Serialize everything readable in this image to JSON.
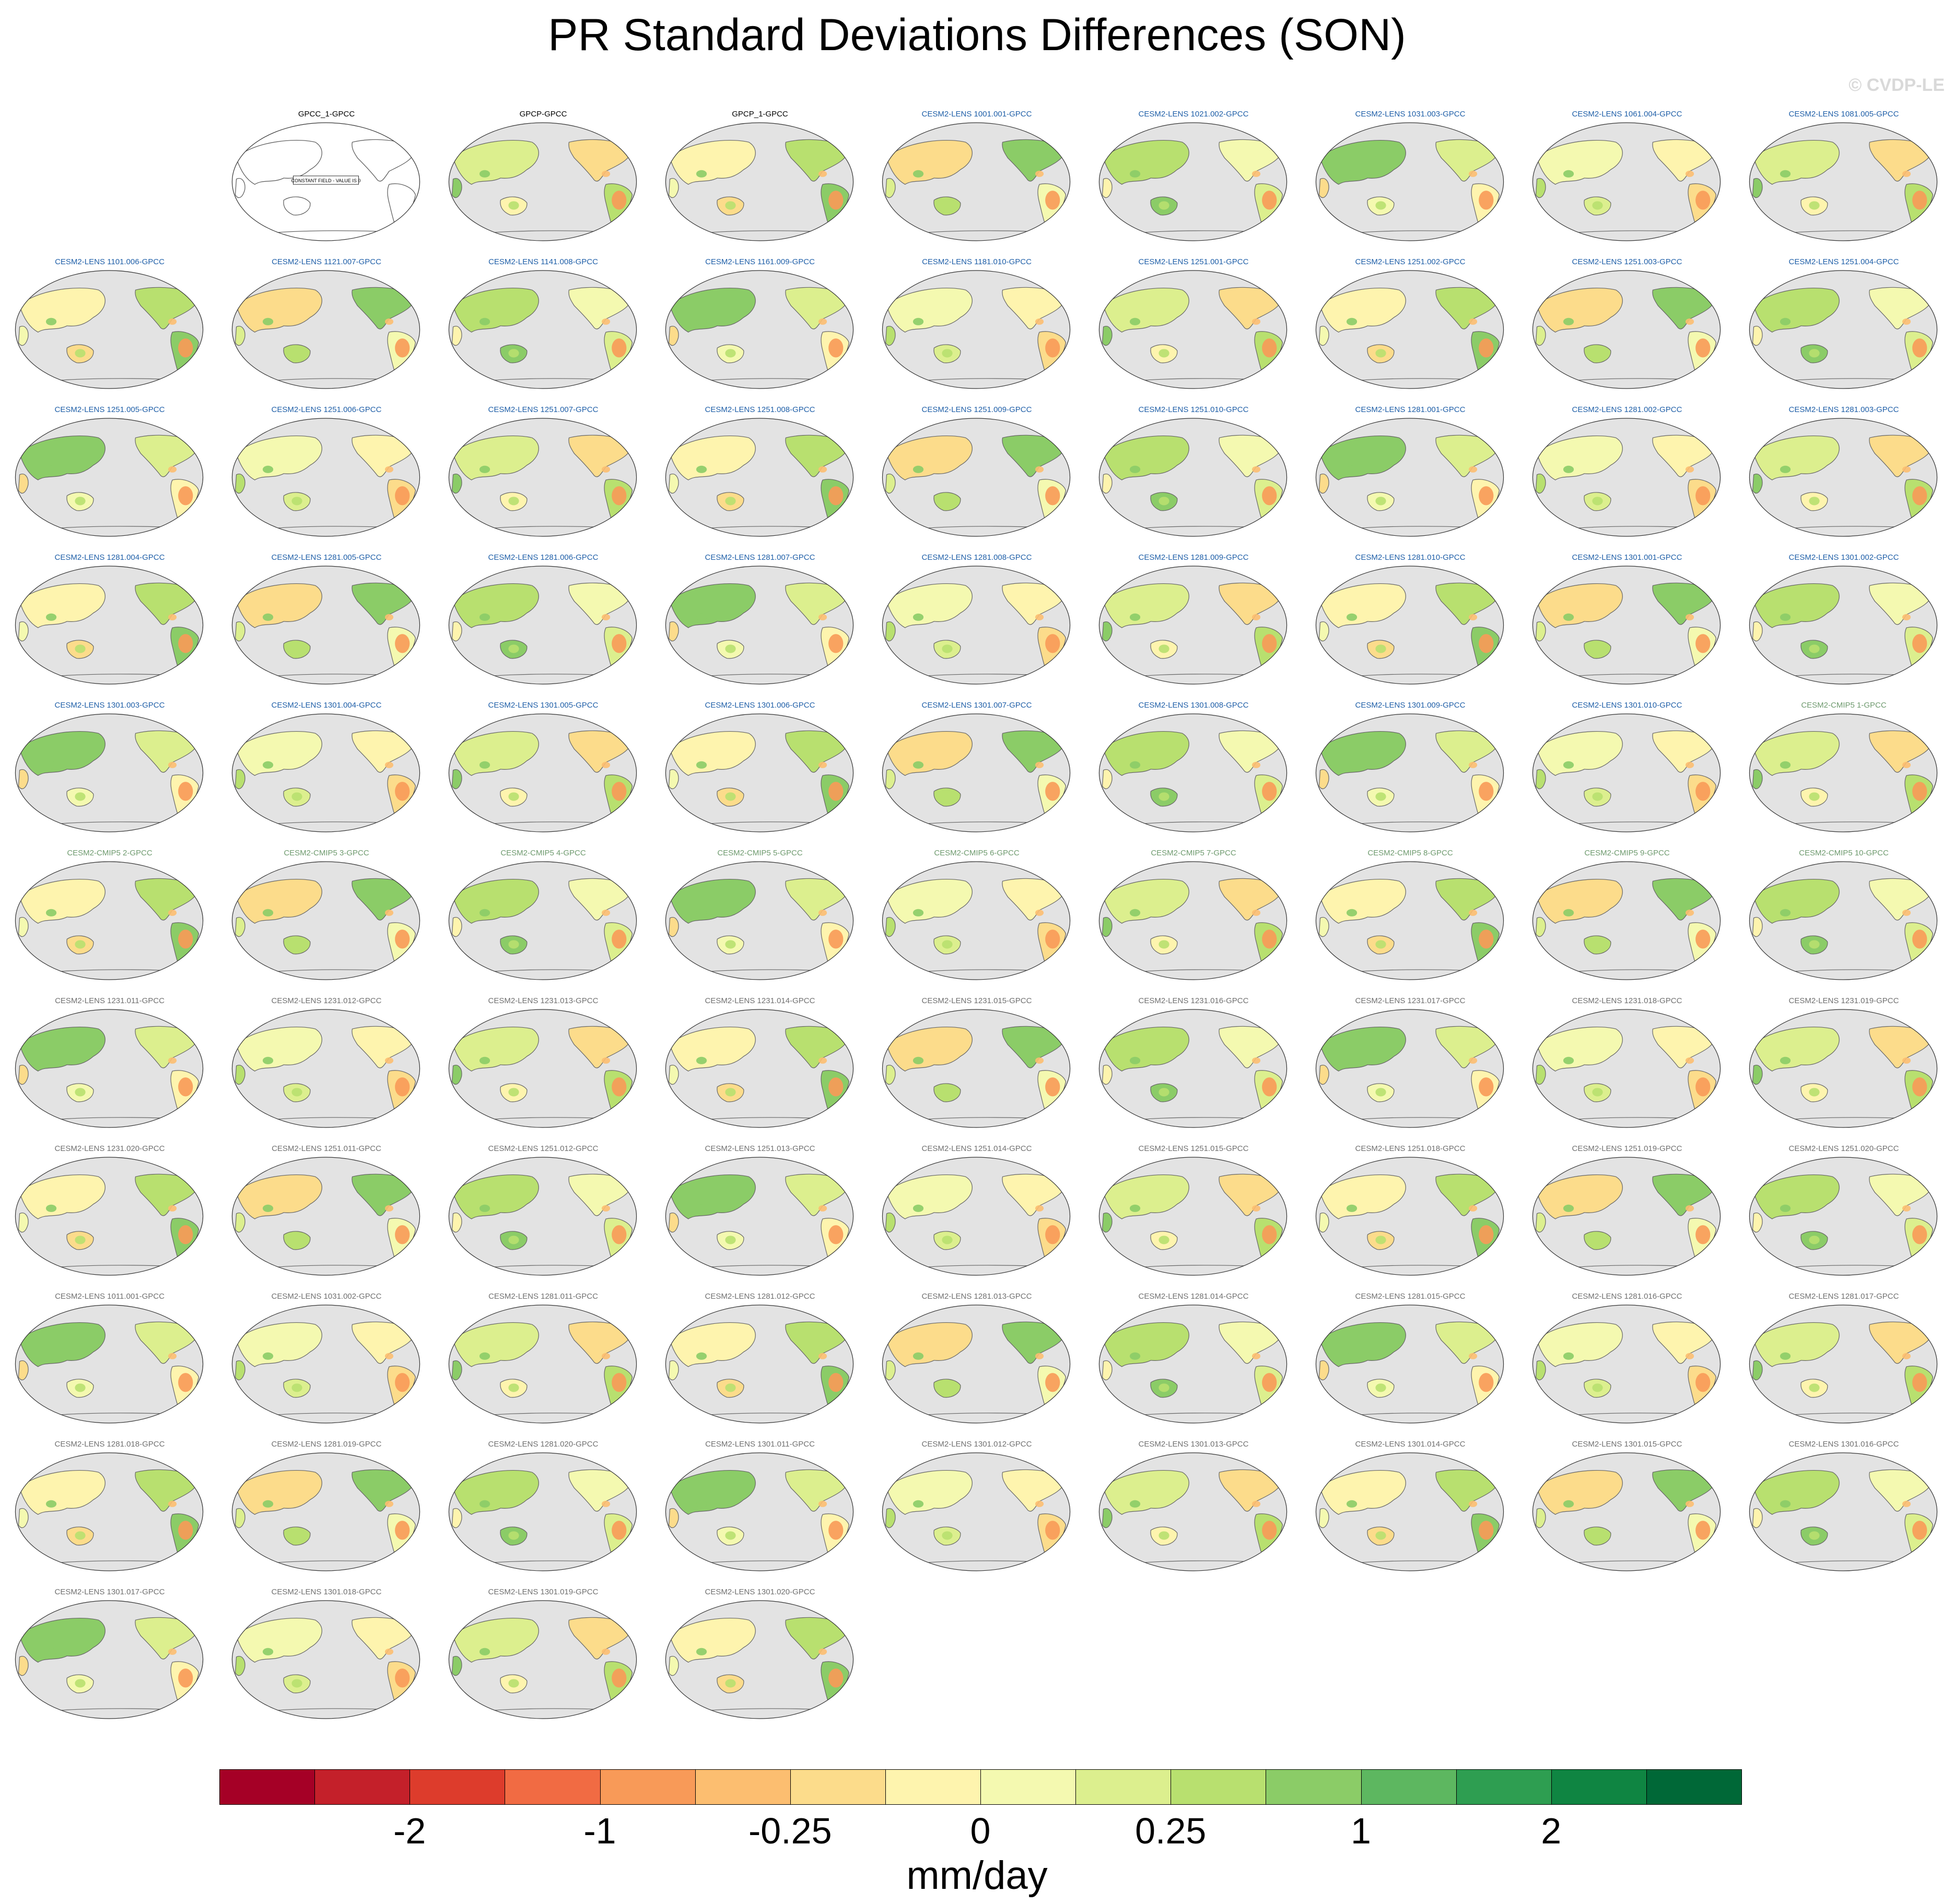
{
  "title": "PR Standard Deviations Differences (SON)",
  "watermark": "© CVDP-LE",
  "colorbar": {
    "units": "mm/day",
    "colors": [
      "#a50026",
      "#c4202a",
      "#dd3c2c",
      "#f16b43",
      "#f89a58",
      "#fcbe70",
      "#fcdc8b",
      "#fef4ae",
      "#f4f9b0",
      "#dcef8e",
      "#b8e06f",
      "#8bcc67",
      "#5db760",
      "#2e9e51",
      "#0f8542",
      "#006837"
    ],
    "tick_labels": [
      "-2",
      "-1",
      "-0.25",
      "0",
      "0.25",
      "1",
      "2"
    ]
  },
  "chart_data": {
    "type": "heatmap",
    "title": "PR Standard Deviations Differences (SON)",
    "units": "mm/day",
    "panels": [
      {
        "title": "GPCC_1-GPCC",
        "color": "#000000",
        "constant_field": "CONSTANT FIELD - VALUE IS 0"
      },
      {
        "title": "GPCP-GPCC",
        "color": "#000000"
      },
      {
        "title": "GPCP_1-GPCC",
        "color": "#000000"
      },
      {
        "title": "CESM2-LENS 1001.001-GPCC",
        "color": "#1f5fa8"
      },
      {
        "title": "CESM2-LENS 1021.002-GPCC",
        "color": "#1f5fa8"
      },
      {
        "title": "CESM2-LENS 1031.003-GPCC",
        "color": "#1f5fa8"
      },
      {
        "title": "CESM2-LENS 1061.004-GPCC",
        "color": "#1f5fa8"
      },
      {
        "title": "CESM2-LENS 1081.005-GPCC",
        "color": "#1f5fa8"
      },
      {
        "title": "CESM2-LENS 1101.006-GPCC",
        "color": "#1f5fa8"
      },
      {
        "title": "CESM2-LENS 1121.007-GPCC",
        "color": "#1f5fa8"
      },
      {
        "title": "CESM2-LENS 1141.008-GPCC",
        "color": "#1f5fa8"
      },
      {
        "title": "CESM2-LENS 1161.009-GPCC",
        "color": "#1f5fa8"
      },
      {
        "title": "CESM2-LENS 1181.010-GPCC",
        "color": "#1f5fa8"
      },
      {
        "title": "CESM2-LENS 1251.001-GPCC",
        "color": "#1f5fa8"
      },
      {
        "title": "CESM2-LENS 1251.002-GPCC",
        "color": "#1f5fa8"
      },
      {
        "title": "CESM2-LENS 1251.003-GPCC",
        "color": "#1f5fa8"
      },
      {
        "title": "CESM2-LENS 1251.004-GPCC",
        "color": "#1f5fa8"
      },
      {
        "title": "CESM2-LENS 1251.005-GPCC",
        "color": "#1f5fa8"
      },
      {
        "title": "CESM2-LENS 1251.006-GPCC",
        "color": "#1f5fa8"
      },
      {
        "title": "CESM2-LENS 1251.007-GPCC",
        "color": "#1f5fa8"
      },
      {
        "title": "CESM2-LENS 1251.008-GPCC",
        "color": "#1f5fa8"
      },
      {
        "title": "CESM2-LENS 1251.009-GPCC",
        "color": "#1f5fa8"
      },
      {
        "title": "CESM2-LENS 1251.010-GPCC",
        "color": "#1f5fa8"
      },
      {
        "title": "CESM2-LENS 1281.001-GPCC",
        "color": "#1f5fa8"
      },
      {
        "title": "CESM2-LENS 1281.002-GPCC",
        "color": "#1f5fa8"
      },
      {
        "title": "CESM2-LENS 1281.003-GPCC",
        "color": "#1f5fa8"
      },
      {
        "title": "CESM2-LENS 1281.004-GPCC",
        "color": "#1f5fa8"
      },
      {
        "title": "CESM2-LENS 1281.005-GPCC",
        "color": "#1f5fa8"
      },
      {
        "title": "CESM2-LENS 1281.006-GPCC",
        "color": "#1f5fa8"
      },
      {
        "title": "CESM2-LENS 1281.007-GPCC",
        "color": "#1f5fa8"
      },
      {
        "title": "CESM2-LENS 1281.008-GPCC",
        "color": "#1f5fa8"
      },
      {
        "title": "CESM2-LENS 1281.009-GPCC",
        "color": "#1f5fa8"
      },
      {
        "title": "CESM2-LENS 1281.010-GPCC",
        "color": "#1f5fa8"
      },
      {
        "title": "CESM2-LENS 1301.001-GPCC",
        "color": "#1f5fa8"
      },
      {
        "title": "CESM2-LENS 1301.002-GPCC",
        "color": "#1f5fa8"
      },
      {
        "title": "CESM2-LENS 1301.003-GPCC",
        "color": "#1f5fa8"
      },
      {
        "title": "CESM2-LENS 1301.004-GPCC",
        "color": "#1f5fa8"
      },
      {
        "title": "CESM2-LENS 1301.005-GPCC",
        "color": "#1f5fa8"
      },
      {
        "title": "CESM2-LENS 1301.006-GPCC",
        "color": "#1f5fa8"
      },
      {
        "title": "CESM2-LENS 1301.007-GPCC",
        "color": "#1f5fa8"
      },
      {
        "title": "CESM2-LENS 1301.008-GPCC",
        "color": "#1f5fa8"
      },
      {
        "title": "CESM2-LENS 1301.009-GPCC",
        "color": "#1f5fa8"
      },
      {
        "title": "CESM2-LENS 1301.010-GPCC",
        "color": "#1f5fa8"
      },
      {
        "title": "CESM2-CMIP5 1-GPCC",
        "color": "#6e9a6e"
      },
      {
        "title": "CESM2-CMIP5 2-GPCC",
        "color": "#6e9a6e"
      },
      {
        "title": "CESM2-CMIP5 3-GPCC",
        "color": "#6e9a6e"
      },
      {
        "title": "CESM2-CMIP5 4-GPCC",
        "color": "#6e9a6e"
      },
      {
        "title": "CESM2-CMIP5 5-GPCC",
        "color": "#6e9a6e"
      },
      {
        "title": "CESM2-CMIP5 6-GPCC",
        "color": "#6e9a6e"
      },
      {
        "title": "CESM2-CMIP5 7-GPCC",
        "color": "#6e9a6e"
      },
      {
        "title": "CESM2-CMIP5 8-GPCC",
        "color": "#6e9a6e"
      },
      {
        "title": "CESM2-CMIP5 9-GPCC",
        "color": "#6e9a6e"
      },
      {
        "title": "CESM2-CMIP5 10-GPCC",
        "color": "#6e9a6e"
      },
      {
        "title": "CESM2-LENS 1231.011-GPCC",
        "color": "#707070"
      },
      {
        "title": "CESM2-LENS 1231.012-GPCC",
        "color": "#707070"
      },
      {
        "title": "CESM2-LENS 1231.013-GPCC",
        "color": "#707070"
      },
      {
        "title": "CESM2-LENS 1231.014-GPCC",
        "color": "#707070"
      },
      {
        "title": "CESM2-LENS 1231.015-GPCC",
        "color": "#707070"
      },
      {
        "title": "CESM2-LENS 1231.016-GPCC",
        "color": "#707070"
      },
      {
        "title": "CESM2-LENS 1231.017-GPCC",
        "color": "#707070"
      },
      {
        "title": "CESM2-LENS 1231.018-GPCC",
        "color": "#707070"
      },
      {
        "title": "CESM2-LENS 1231.019-GPCC",
        "color": "#707070"
      },
      {
        "title": "CESM2-LENS 1231.020-GPCC",
        "color": "#707070"
      },
      {
        "title": "CESM2-LENS 1251.011-GPCC",
        "color": "#707070"
      },
      {
        "title": "CESM2-LENS 1251.012-GPCC",
        "color": "#707070"
      },
      {
        "title": "CESM2-LENS 1251.013-GPCC",
        "color": "#707070"
      },
      {
        "title": "CESM2-LENS 1251.014-GPCC",
        "color": "#707070"
      },
      {
        "title": "CESM2-LENS 1251.015-GPCC",
        "color": "#707070"
      },
      {
        "title": "CESM2-LENS 1251.018-GPCC",
        "color": "#707070"
      },
      {
        "title": "CESM2-LENS 1251.019-GPCC",
        "color": "#707070"
      },
      {
        "title": "CESM2-LENS 1251.020-GPCC",
        "color": "#707070"
      },
      {
        "title": "CESM2-LENS 1011.001-GPCC",
        "color": "#707070"
      },
      {
        "title": "CESM2-LENS 1031.002-GPCC",
        "color": "#707070"
      },
      {
        "title": "CESM2-LENS 1281.011-GPCC",
        "color": "#707070"
      },
      {
        "title": "CESM2-LENS 1281.012-GPCC",
        "color": "#707070"
      },
      {
        "title": "CESM2-LENS 1281.013-GPCC",
        "color": "#707070"
      },
      {
        "title": "CESM2-LENS 1281.014-GPCC",
        "color": "#707070"
      },
      {
        "title": "CESM2-LENS 1281.015-GPCC",
        "color": "#707070"
      },
      {
        "title": "CESM2-LENS 1281.016-GPCC",
        "color": "#707070"
      },
      {
        "title": "CESM2-LENS 1281.017-GPCC",
        "color": "#707070"
      },
      {
        "title": "CESM2-LENS 1281.018-GPCC",
        "color": "#707070"
      },
      {
        "title": "CESM2-LENS 1281.019-GPCC",
        "color": "#707070"
      },
      {
        "title": "CESM2-LENS 1281.020-GPCC",
        "color": "#707070"
      },
      {
        "title": "CESM2-LENS 1301.011-GPCC",
        "color": "#707070"
      },
      {
        "title": "CESM2-LENS 1301.012-GPCC",
        "color": "#707070"
      },
      {
        "title": "CESM2-LENS 1301.013-GPCC",
        "color": "#707070"
      },
      {
        "title": "CESM2-LENS 1301.014-GPCC",
        "color": "#707070"
      },
      {
        "title": "CESM2-LENS 1301.015-GPCC",
        "color": "#707070"
      },
      {
        "title": "CESM2-LENS 1301.016-GPCC",
        "color": "#707070"
      },
      {
        "title": "CESM2-LENS 1301.017-GPCC",
        "color": "#707070"
      },
      {
        "title": "CESM2-LENS 1301.018-GPCC",
        "color": "#707070"
      },
      {
        "title": "CESM2-LENS 1301.019-GPCC",
        "color": "#707070"
      },
      {
        "title": "CESM2-LENS 1301.020-GPCC",
        "color": "#707070"
      }
    ]
  }
}
